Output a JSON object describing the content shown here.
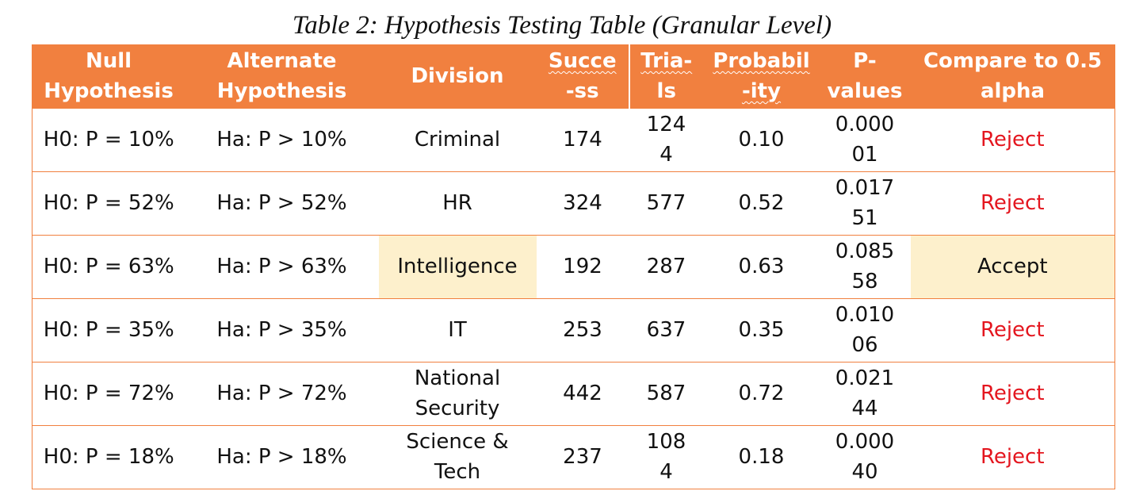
{
  "caption": "Table 2: Hypothesis Testing Table (Granular Level)",
  "columns": [
    {
      "line1": "Null",
      "line2": "Hypothesis"
    },
    {
      "line1": "Alternate",
      "line2": "Hypothesis"
    },
    {
      "line1": "Division",
      "line2": ""
    },
    {
      "line1": "Succe",
      "line2": "-ss"
    },
    {
      "line1": "Tria-",
      "line2": "ls"
    },
    {
      "line1": "Probabil",
      "line2": "-ity"
    },
    {
      "line1": "P-",
      "line2": "values"
    },
    {
      "line1": "Compare to 0.5",
      "line2": "alpha"
    }
  ],
  "rows": [
    {
      "null_h": "H0: P = 10%",
      "alt_h": "Ha: P > 10%",
      "division": "Criminal",
      "division2": "",
      "success": "174",
      "trials": "124",
      "trials2": "4",
      "probability": "0.10",
      "pvalue": "0.000",
      "pvalue2": "01",
      "decision": "Reject"
    },
    {
      "null_h": "H0: P = 52%",
      "alt_h": "Ha: P > 52%",
      "division": "HR",
      "division2": "",
      "success": "324",
      "trials": "577",
      "trials2": "",
      "probability": "0.52",
      "pvalue": "0.017",
      "pvalue2": "51",
      "decision": "Reject"
    },
    {
      "null_h": "H0: P = 63%",
      "alt_h": "Ha: P > 63%",
      "division": "Intelligence",
      "division2": "",
      "success": "192",
      "trials": "287",
      "trials2": "",
      "probability": "0.63",
      "pvalue": "0.085",
      "pvalue2": "58",
      "decision": "Accept"
    },
    {
      "null_h": "H0: P = 35%",
      "alt_h": "Ha: P > 35%",
      "division": "IT",
      "division2": "",
      "success": "253",
      "trials": "637",
      "trials2": "",
      "probability": "0.35",
      "pvalue": "0.010",
      "pvalue2": "06",
      "decision": "Reject"
    },
    {
      "null_h": "H0: P = 72%",
      "alt_h": "Ha: P > 72%",
      "division": "National",
      "division2": "Security",
      "success": "442",
      "trials": "587",
      "trials2": "",
      "probability": "0.72",
      "pvalue": "0.021",
      "pvalue2": "44",
      "decision": "Reject"
    },
    {
      "null_h": "H0: P = 18%",
      "alt_h": "Ha: P > 18%",
      "division": "Science &",
      "division2": "Tech",
      "success": "237",
      "trials": "108",
      "trials2": "4",
      "probability": "0.18",
      "pvalue": "0.000",
      "pvalue2": "40",
      "decision": "Reject"
    }
  ],
  "colors": {
    "header_bg": "#f1803f",
    "reject_text": "#e4161f",
    "highlight_bg": "#fdf0cc"
  }
}
